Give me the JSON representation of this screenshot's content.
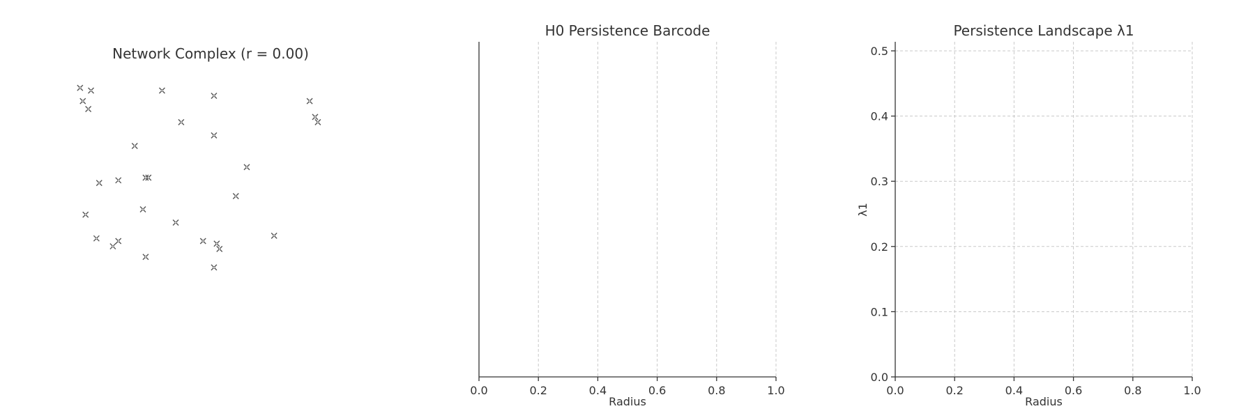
{
  "chart_data": [
    {
      "type": "scatter",
      "title": "Network Complex (r = 0.00)",
      "marker": "x",
      "marker_color": "#555555",
      "axes_visible": false,
      "x_range": [
        0.0,
        1.0
      ],
      "y_range": [
        0.0,
        1.0
      ],
      "points": [
        {
          "x": 0.02,
          "y": 0.96
        },
        {
          "x": 0.06,
          "y": 0.95
        },
        {
          "x": 0.03,
          "y": 0.91
        },
        {
          "x": 0.05,
          "y": 0.88
        },
        {
          "x": 0.32,
          "y": 0.95
        },
        {
          "x": 0.51,
          "y": 0.93
        },
        {
          "x": 0.86,
          "y": 0.91
        },
        {
          "x": 0.88,
          "y": 0.85
        },
        {
          "x": 0.89,
          "y": 0.83
        },
        {
          "x": 0.39,
          "y": 0.83
        },
        {
          "x": 0.51,
          "y": 0.78
        },
        {
          "x": 0.22,
          "y": 0.74
        },
        {
          "x": 0.63,
          "y": 0.66
        },
        {
          "x": 0.09,
          "y": 0.6
        },
        {
          "x": 0.16,
          "y": 0.61
        },
        {
          "x": 0.26,
          "y": 0.62
        },
        {
          "x": 0.27,
          "y": 0.62
        },
        {
          "x": 0.59,
          "y": 0.55
        },
        {
          "x": 0.25,
          "y": 0.5
        },
        {
          "x": 0.04,
          "y": 0.48
        },
        {
          "x": 0.37,
          "y": 0.45
        },
        {
          "x": 0.08,
          "y": 0.39
        },
        {
          "x": 0.14,
          "y": 0.36
        },
        {
          "x": 0.16,
          "y": 0.38
        },
        {
          "x": 0.47,
          "y": 0.38
        },
        {
          "x": 0.52,
          "y": 0.37
        },
        {
          "x": 0.53,
          "y": 0.35
        },
        {
          "x": 0.73,
          "y": 0.4
        },
        {
          "x": 0.26,
          "y": 0.32
        },
        {
          "x": 0.51,
          "y": 0.28
        }
      ]
    },
    {
      "type": "bar",
      "orientation": "horizontal",
      "title": "H0 Persistence Barcode",
      "xlabel": "Radius",
      "ylabel": "",
      "xlim": [
        0.0,
        1.0
      ],
      "xticks": [
        "0.0",
        "0.2",
        "0.4",
        "0.6",
        "0.8",
        "1.0"
      ],
      "grid": "x-dashed",
      "bars": []
    },
    {
      "type": "line",
      "title": "Persistence Landscape λ1",
      "xlabel": "Radius",
      "ylabel": "λ1",
      "xlim": [
        0.0,
        1.0
      ],
      "ylim": [
        0.0,
        0.5
      ],
      "xticks": [
        "0.0",
        "0.2",
        "0.4",
        "0.6",
        "0.8",
        "1.0"
      ],
      "yticks": [
        "0.0",
        "0.1",
        "0.2",
        "0.3",
        "0.4",
        "0.5"
      ],
      "grid": "both-dashed",
      "series": []
    }
  ],
  "colors": {
    "axis": "#333333",
    "grid": "#c8c8c8",
    "marker": "#555555",
    "text": "#333333"
  }
}
